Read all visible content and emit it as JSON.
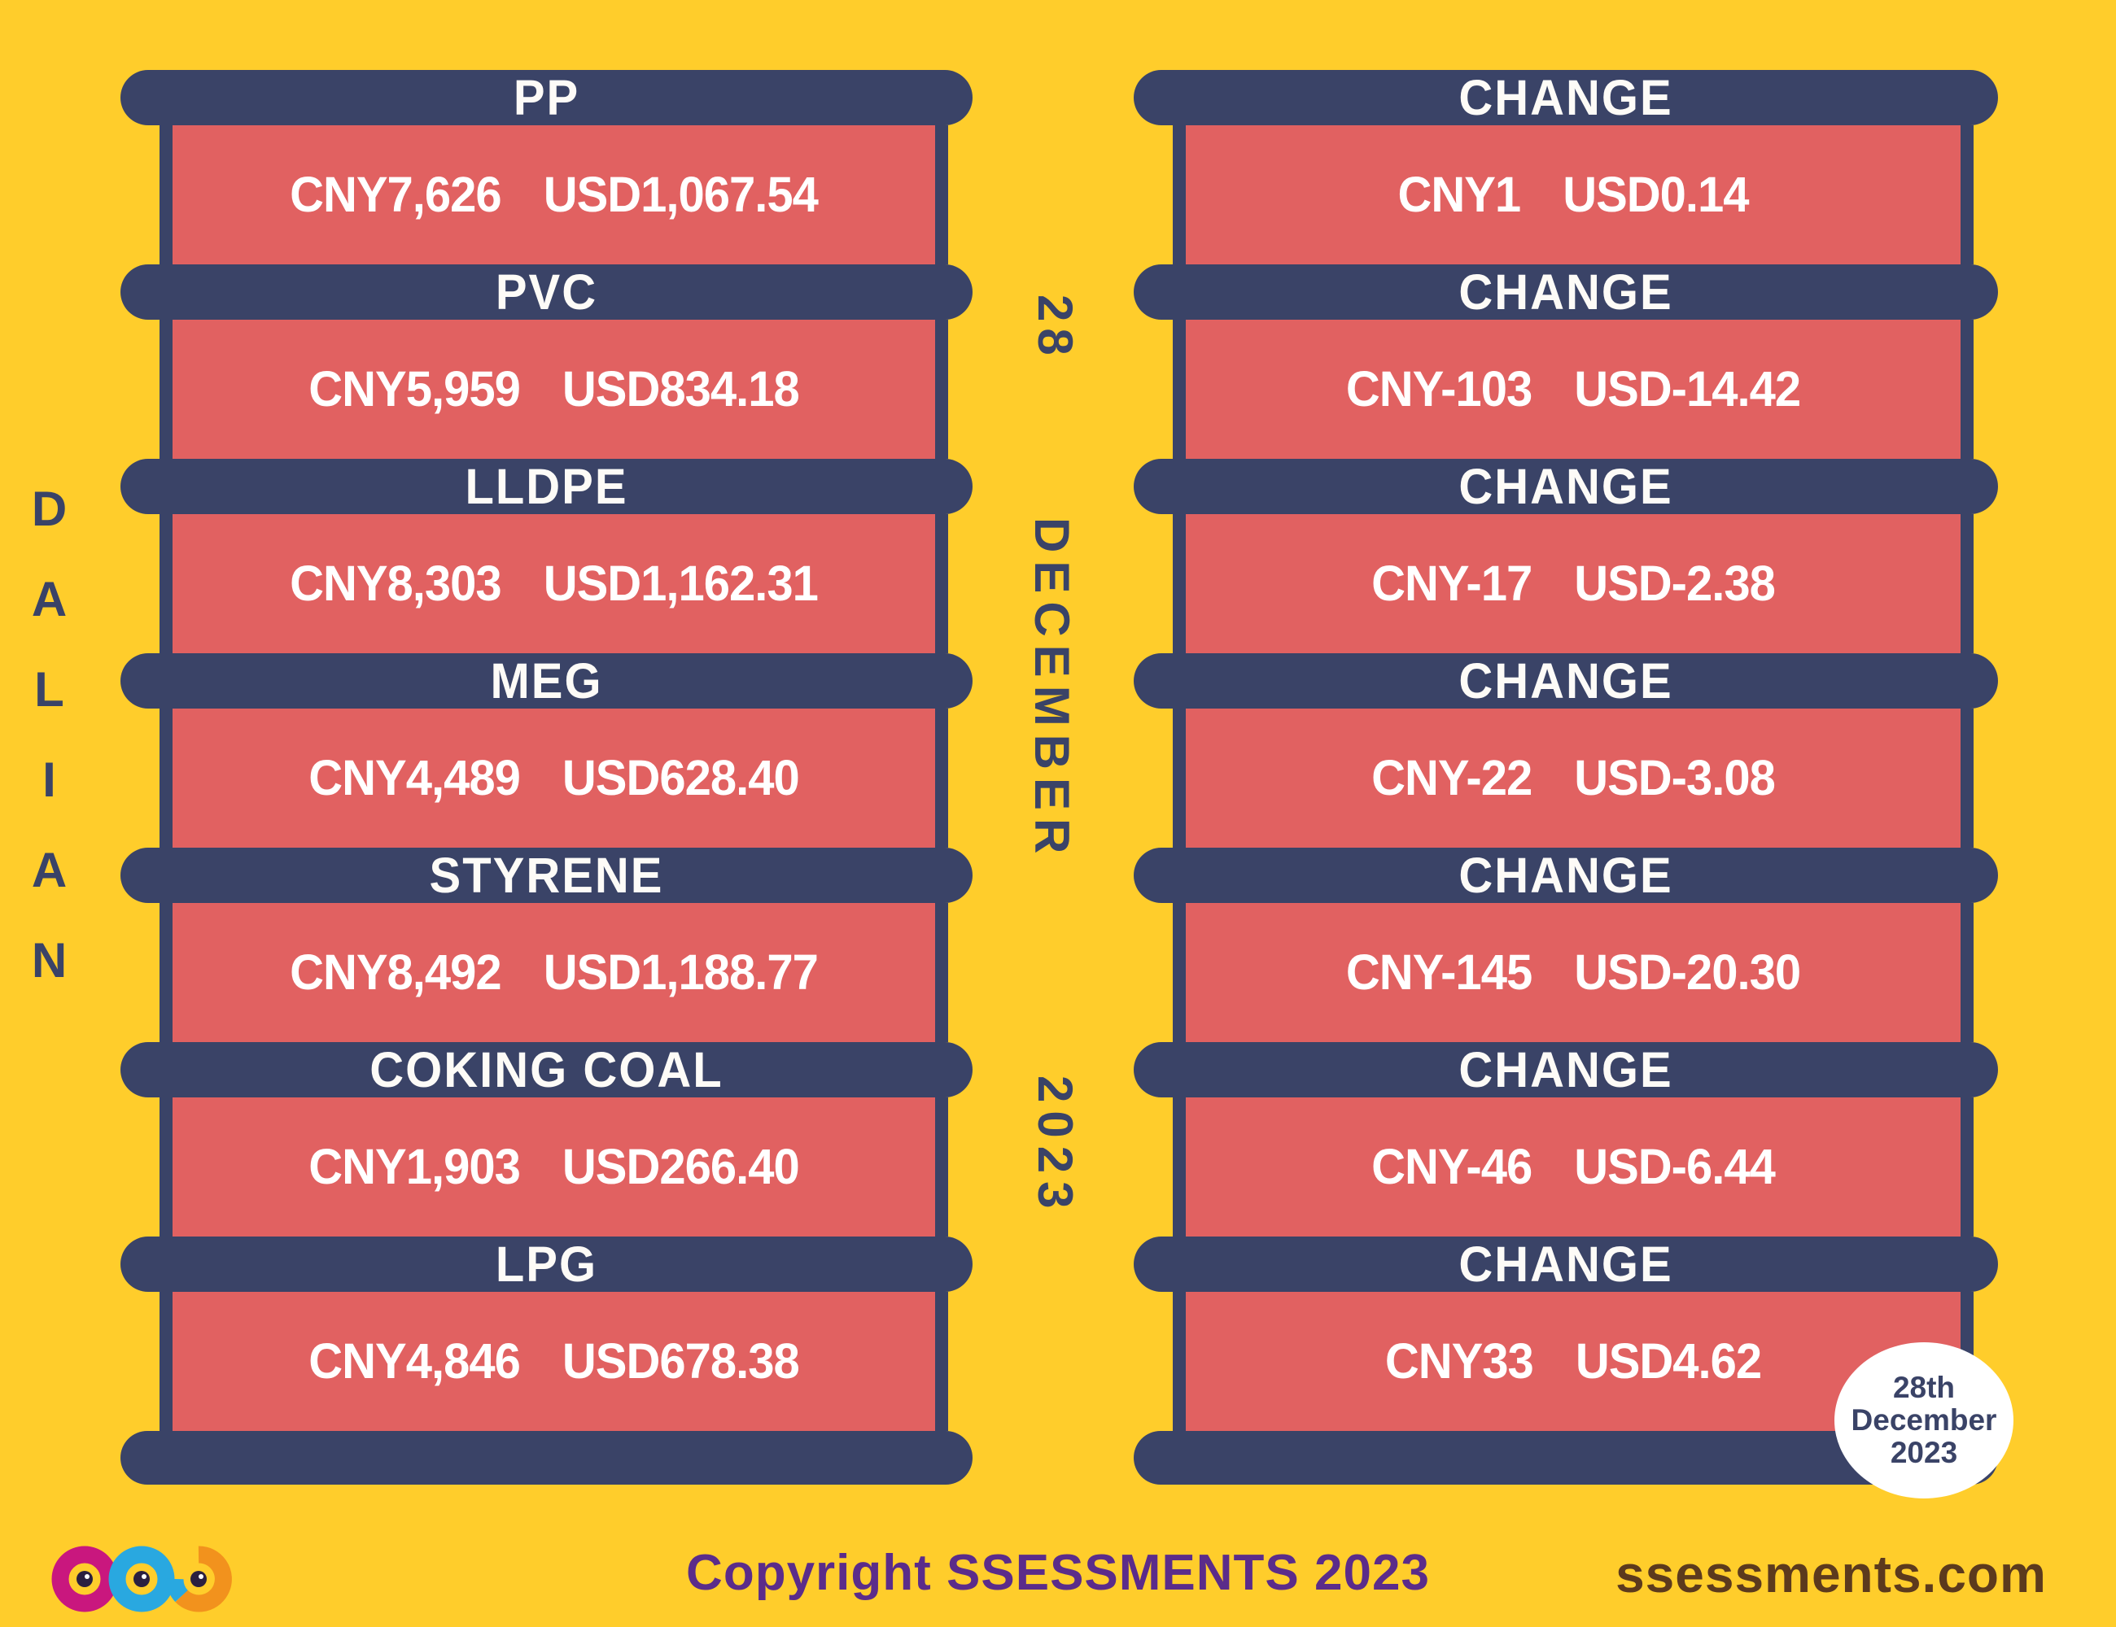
{
  "location": "DALIAN",
  "date": {
    "day": "28",
    "month": "DECEMBER",
    "year": "2023"
  },
  "change_title": "CHANGE",
  "products": [
    {
      "name": "PP",
      "cny": "CNY7,626",
      "usd": "USD1,067.54",
      "change_cny": "CNY1",
      "change_usd": "USD0.14"
    },
    {
      "name": "PVC",
      "cny": "CNY5,959",
      "usd": "USD834.18",
      "change_cny": "CNY-103",
      "change_usd": "USD-14.42"
    },
    {
      "name": "LLDPE",
      "cny": "CNY8,303",
      "usd": "USD1,162.31",
      "change_cny": "CNY-17",
      "change_usd": "USD-2.38"
    },
    {
      "name": "MEG",
      "cny": "CNY4,489",
      "usd": "USD628.40",
      "change_cny": "CNY-22",
      "change_usd": "USD-3.08"
    },
    {
      "name": "STYRENE",
      "cny": "CNY8,492",
      "usd": "USD1,188.77",
      "change_cny": "CNY-145",
      "change_usd": "USD-20.30"
    },
    {
      "name": "COKING COAL",
      "cny": "CNY1,903",
      "usd": "USD266.40",
      "change_cny": "CNY-46",
      "change_usd": "USD-6.44"
    },
    {
      "name": "LPG",
      "cny": "CNY4,846",
      "usd": "USD678.38",
      "change_cny": "CNY33",
      "change_usd": "USD4.62"
    }
  ],
  "badge": {
    "line1": "28th",
    "line2": "December",
    "line3": "2023"
  },
  "footer": {
    "copyright": "Copyright SSESSMENTS 2023",
    "website": "ssessments.com",
    "logo_icon": "ssessments-infinity-loops-icon"
  },
  "colors": {
    "background": "#FFCD2B",
    "navy": "#3A4367",
    "red": "#E16161",
    "white": "#FFFFFF",
    "purple": "#5B2C8A",
    "brown": "#5C3A1D",
    "logo_magenta": "#C9177E",
    "logo_blue": "#29A8E0",
    "logo_orange": "#F2921D"
  }
}
